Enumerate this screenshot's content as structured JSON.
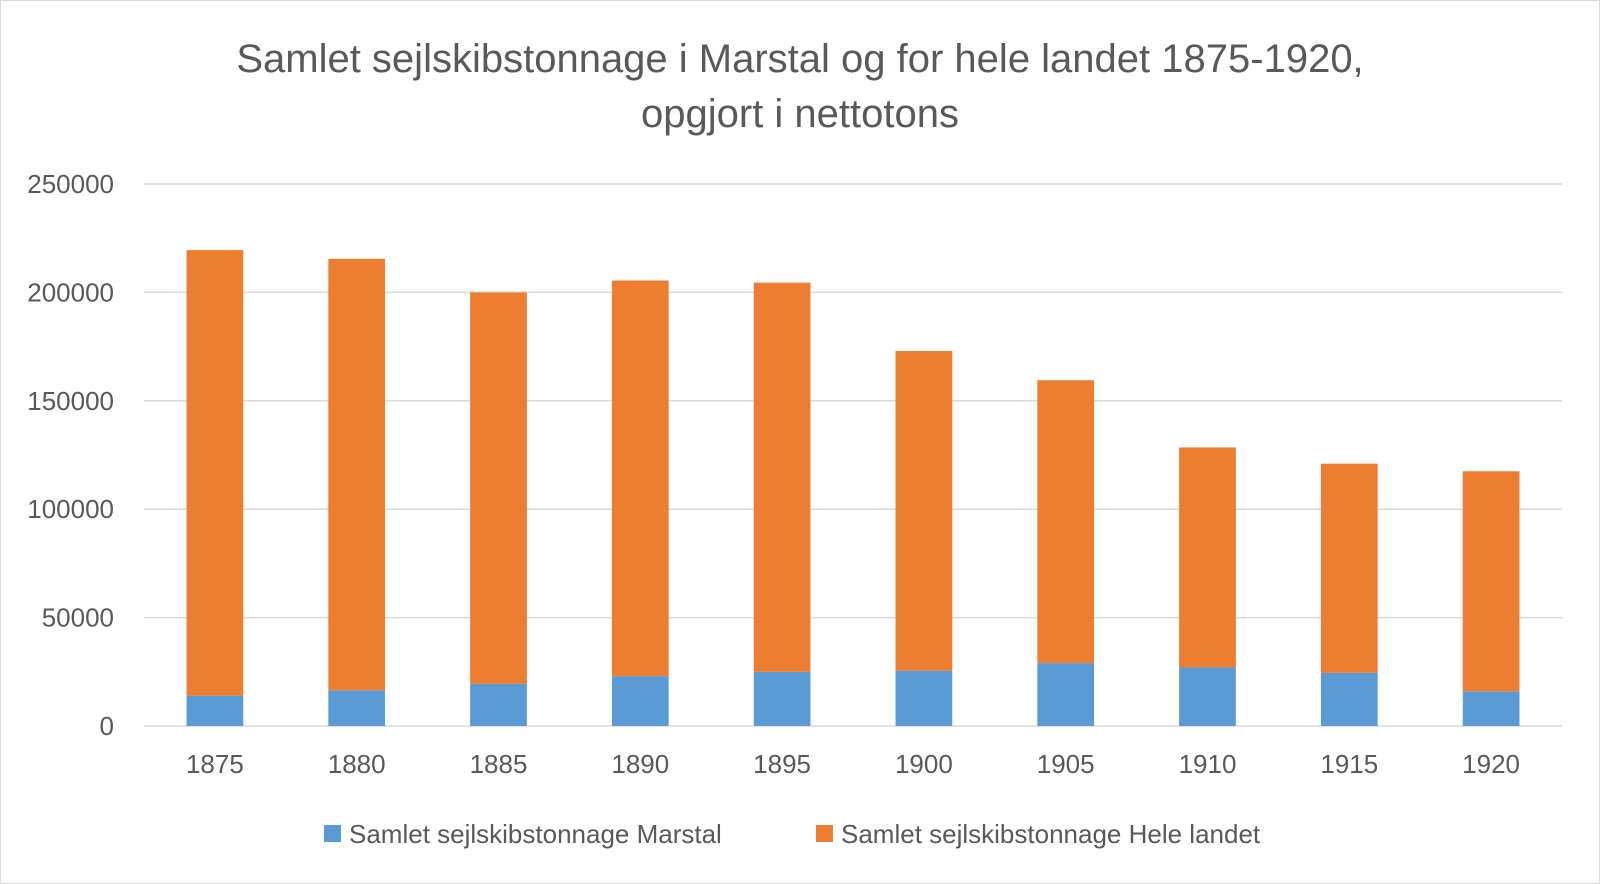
{
  "chart_data": {
    "type": "bar",
    "stacked": true,
    "title": [
      "Samlet sejlskibstonnage i Marstal og for hele landet 1875-1920,",
      "opgjort i nettotons"
    ],
    "categories": [
      "1875",
      "1880",
      "1885",
      "1890",
      "1895",
      "1900",
      "1905",
      "1910",
      "1915",
      "1920"
    ],
    "series": [
      {
        "name": "Samlet sejlskibstonnage Marstal",
        "color": "#5b9bd5",
        "values": [
          14000,
          16500,
          19500,
          23000,
          25000,
          25500,
          29000,
          27000,
          24500,
          16000
        ]
      },
      {
        "name": "Samlet sejlskibstonnage Hele landet",
        "color": "#ed7d31",
        "values": [
          205500,
          199000,
          180500,
          182500,
          179500,
          147500,
          130500,
          101500,
          96500,
          101500
        ]
      }
    ],
    "ylim": [
      0,
      250000
    ],
    "yticks": [
      "0",
      "50000",
      "100000",
      "150000",
      "200000",
      "250000"
    ],
    "xlabel": "",
    "ylabel": "",
    "grid": true,
    "legend": "bottom"
  }
}
